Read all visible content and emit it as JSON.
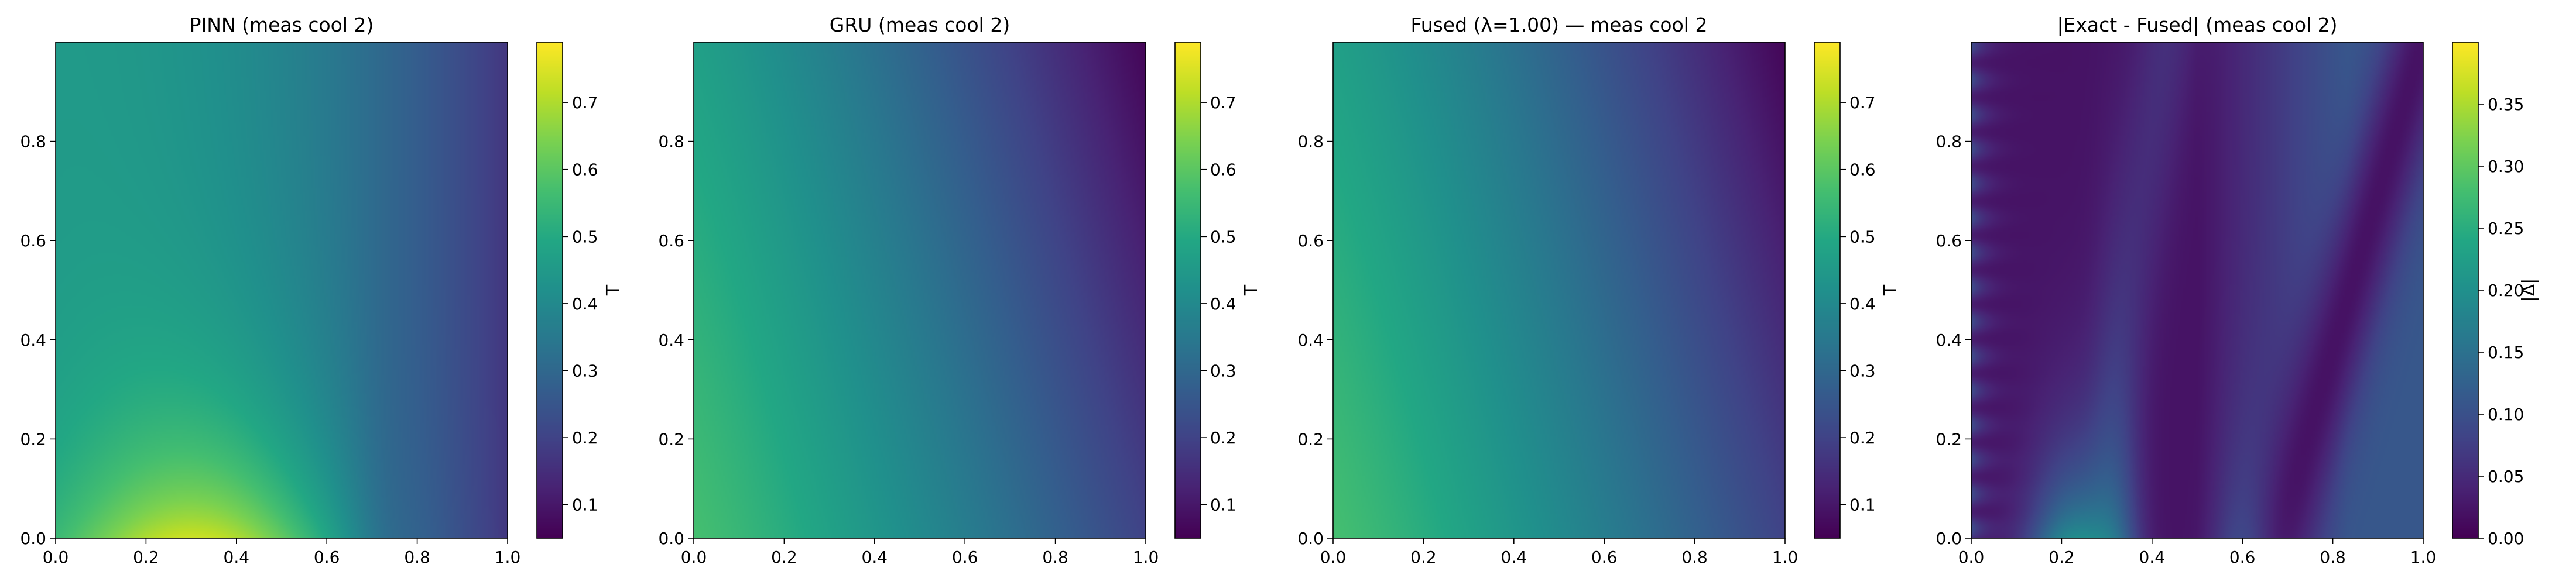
{
  "figure": "4 heatmap panels with colorbars",
  "chart_data": [
    {
      "type": "heatmap",
      "title": "PINN (meas cool 2)",
      "xlim": [
        0.0,
        1.0
      ],
      "ylim": [
        0.0,
        1.0
      ],
      "x_ticks": [
        "0.0",
        "0.2",
        "0.4",
        "0.6",
        "0.8",
        "1.0"
      ],
      "y_ticks": [
        "0.0",
        "0.2",
        "0.4",
        "0.6",
        "0.8"
      ],
      "colormap": "viridis",
      "colorbar": {
        "label": "T",
        "range": [
          0.05,
          0.79
        ],
        "ticks": [
          "0.1",
          "0.2",
          "0.3",
          "0.4",
          "0.5",
          "0.6",
          "0.7"
        ]
      },
      "field_summary": {
        "bottom_left": 0.6,
        "peak": 0.78,
        "peak_at": [
          0.33,
          0.0
        ],
        "top_left": 0.45,
        "right_edge": 0.17,
        "top_right": 0.2
      }
    },
    {
      "type": "heatmap",
      "title": "GRU (meas cool 2)",
      "xlim": [
        0.0,
        1.0
      ],
      "ylim": [
        0.0,
        1.0
      ],
      "x_ticks": [
        "0.0",
        "0.2",
        "0.4",
        "0.6",
        "0.8",
        "1.0"
      ],
      "y_ticks": [
        "0.0",
        "0.2",
        "0.4",
        "0.6",
        "0.8"
      ],
      "colormap": "viridis",
      "colorbar": {
        "label": "T",
        "range": [
          0.05,
          0.79
        ],
        "ticks": [
          "0.1",
          "0.2",
          "0.3",
          "0.4",
          "0.5",
          "0.6",
          "0.7"
        ]
      },
      "field_summary": {
        "bottom_left": 0.57,
        "top_left": 0.47,
        "center": 0.37,
        "bottom_right": 0.2,
        "top_right": 0.06
      }
    },
    {
      "type": "heatmap",
      "title": "Fused (λ=1.00) — meas cool 2",
      "xlim": [
        0.0,
        1.0
      ],
      "ylim": [
        0.0,
        1.0
      ],
      "x_ticks": [
        "0.0",
        "0.2",
        "0.4",
        "0.6",
        "0.8",
        "1.0"
      ],
      "y_ticks": [
        "0.0",
        "0.2",
        "0.4",
        "0.6",
        "0.8"
      ],
      "colormap": "viridis",
      "colorbar": {
        "label": "T",
        "range": [
          0.05,
          0.79
        ],
        "ticks": [
          "0.1",
          "0.2",
          "0.3",
          "0.4",
          "0.5",
          "0.6",
          "0.7"
        ]
      },
      "field_summary": {
        "bottom_left": 0.57,
        "top_left": 0.47,
        "center": 0.37,
        "bottom_right": 0.2,
        "top_right": 0.06
      }
    },
    {
      "type": "heatmap",
      "title": "|Exact - Fused| (meas cool 2)",
      "xlim": [
        0.0,
        1.0
      ],
      "ylim": [
        0.0,
        1.0
      ],
      "x_ticks": [
        "0.0",
        "0.2",
        "0.4",
        "0.6",
        "0.8",
        "1.0"
      ],
      "y_ticks": [
        "0.0",
        "0.2",
        "0.4",
        "0.6",
        "0.8"
      ],
      "colormap": "viridis",
      "colorbar": {
        "label": "|Δ|",
        "range": [
          0.0,
          0.4
        ],
        "ticks": [
          "0.00",
          "0.05",
          "0.10",
          "0.15",
          "0.20",
          "0.25",
          "0.30",
          "0.35"
        ]
      },
      "field_summary": {
        "max": 0.18,
        "max_at": [
          0.22,
          0.0
        ],
        "left_edge_band": 0.08,
        "background": 0.02,
        "right_band": 0.09
      }
    }
  ]
}
